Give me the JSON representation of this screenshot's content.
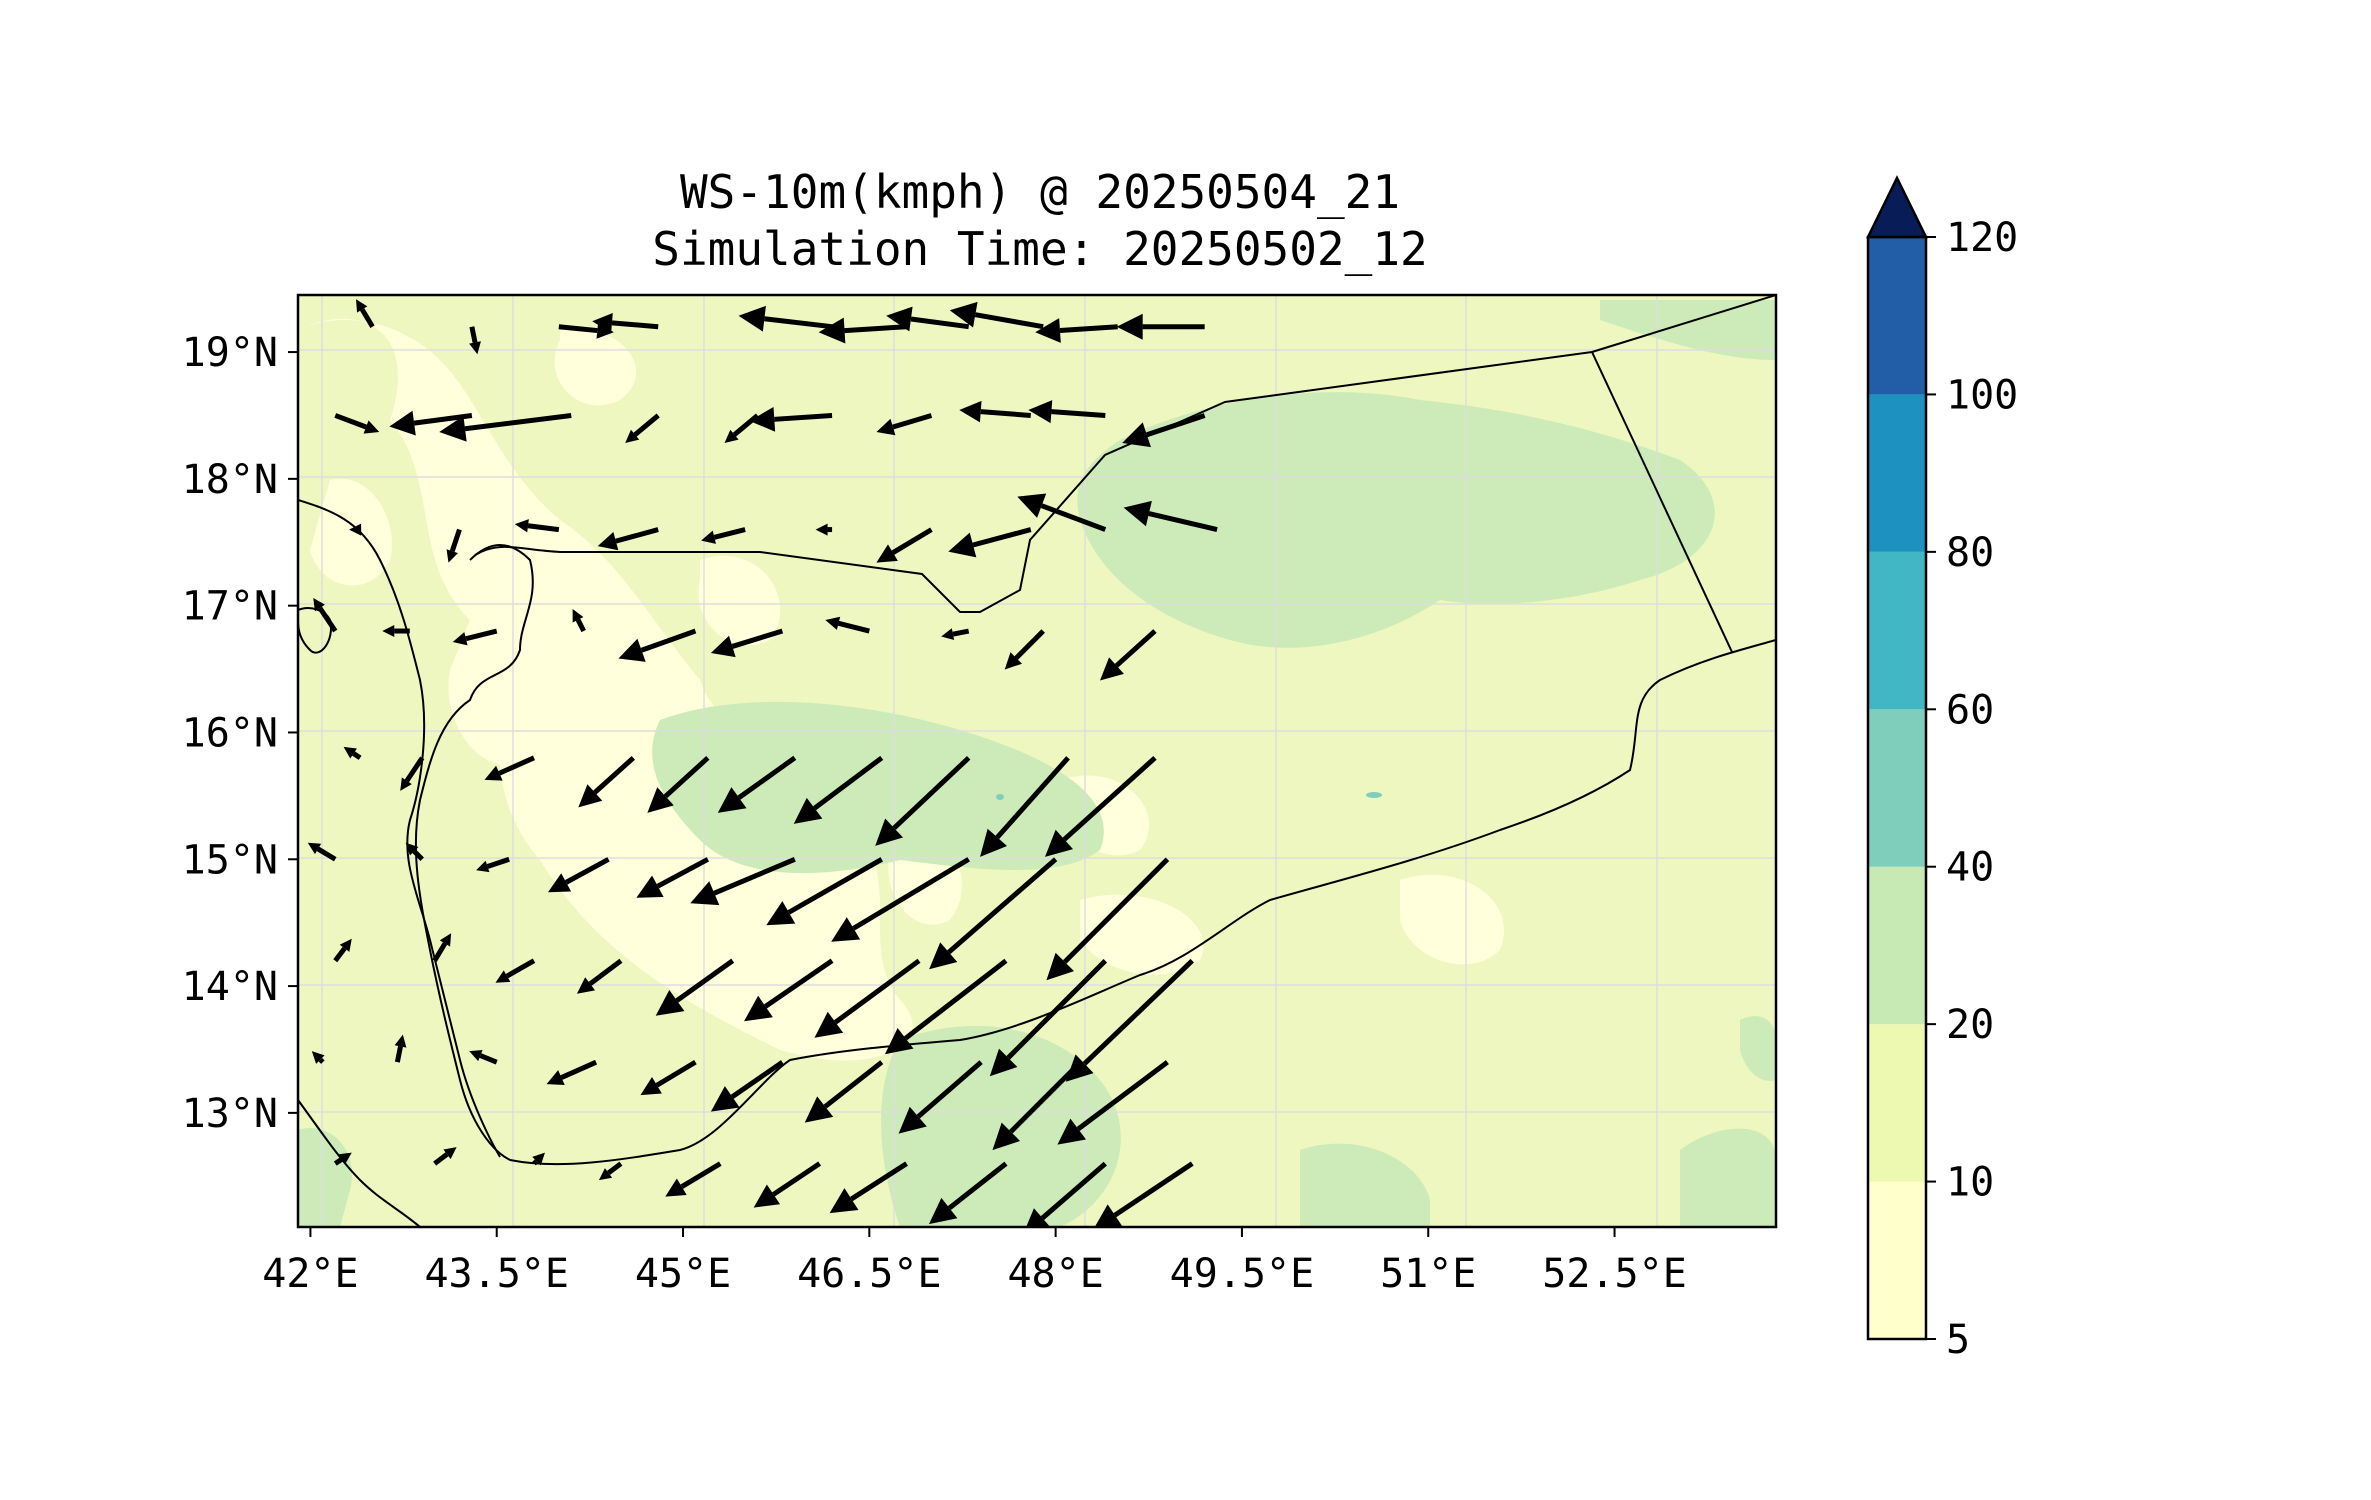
{
  "title": {
    "line1": "WS-10m(kmph) @ 20250504_21",
    "line2": "Simulation Time: 20250502_12"
  },
  "map": {
    "lon_ticks": [
      "42°E",
      "43.5°E",
      "45°E",
      "46.5°E",
      "48°E",
      "49.5°E",
      "51°E",
      "52.5°E"
    ],
    "lat_ticks": [
      "19°N",
      "18°N",
      "17°N",
      "16°N",
      "15°N",
      "14°N",
      "13°N"
    ],
    "lon_range": [
      41.9,
      53.8
    ],
    "lat_range": [
      12.1,
      19.45
    ]
  },
  "colorbar": {
    "levels": [
      "5",
      "10",
      "20",
      "40",
      "60",
      "80",
      "100",
      "120"
    ],
    "colors": [
      "#ffffcc",
      "#edf8b1",
      "#c7e9b4",
      "#7fcdbb",
      "#41b6c4",
      "#1d91c0",
      "#225ea8",
      "#253494"
    ],
    "extend_color": "#081d58"
  },
  "colors": {
    "band_5_10": "#ffffd9",
    "band_10_20": "#eff8c2",
    "band_20_40": "#cdebb8",
    "band_40_60": "#7fcdbb",
    "arrow": "#000000"
  },
  "chart_data": {
    "type": "vector_field",
    "variable": "10 m wind speed (kmph)",
    "arrows": [
      [
        42.5,
        19.2,
        -30,
        50
      ],
      [
        43.3,
        19.2,
        10,
        -50
      ],
      [
        44,
        19.2,
        100,
        -10
      ],
      [
        44.8,
        19.2,
        -120,
        10
      ],
      [
        46.2,
        19.2,
        -170,
        20
      ],
      [
        46.8,
        19.2,
        -160,
        -10
      ],
      [
        47.3,
        19.2,
        -150,
        20
      ],
      [
        47.9,
        19.2,
        -170,
        30
      ],
      [
        48.5,
        19.2,
        -150,
        -10
      ],
      [
        49.2,
        19.2,
        -160,
        0
      ],
      [
        42.2,
        18.5,
        80,
        -30
      ],
      [
        43.3,
        18.5,
        -150,
        -20
      ],
      [
        44.1,
        18.5,
        -240,
        -30
      ],
      [
        44.8,
        18.5,
        -60,
        -50
      ],
      [
        45.6,
        18.5,
        -60,
        -50
      ],
      [
        46.2,
        18.5,
        -150,
        -10
      ],
      [
        47,
        18.5,
        -100,
        -30
      ],
      [
        47.8,
        18.5,
        -130,
        10
      ],
      [
        48.4,
        18.5,
        -140,
        10
      ],
      [
        49.2,
        18.5,
        -150,
        -50
      ],
      [
        42.4,
        17.6,
        -20,
        0
      ],
      [
        43.2,
        17.6,
        -20,
        -60
      ],
      [
        44,
        17.6,
        -80,
        10
      ],
      [
        44.8,
        17.6,
        -110,
        -30
      ],
      [
        45.5,
        17.6,
        -80,
        -20
      ],
      [
        46.2,
        17.6,
        -30,
        0
      ],
      [
        47,
        17.6,
        -100,
        -60
      ],
      [
        47.8,
        17.6,
        -150,
        -40
      ],
      [
        48.4,
        17.6,
        -160,
        60
      ],
      [
        49.3,
        17.6,
        -170,
        40
      ],
      [
        42.2,
        16.8,
        -40,
        60
      ],
      [
        42.8,
        16.8,
        -50,
        0
      ],
      [
        43.5,
        16.8,
        -80,
        -20
      ],
      [
        44.2,
        16.8,
        -20,
        40
      ],
      [
        45.1,
        16.8,
        -140,
        -50
      ],
      [
        45.8,
        16.8,
        -130,
        -40
      ],
      [
        46.5,
        16.8,
        -80,
        20
      ],
      [
        47.3,
        16.8,
        -50,
        -10
      ],
      [
        47.9,
        16.8,
        -70,
        -70
      ],
      [
        48.8,
        16.8,
        -100,
        -90
      ],
      [
        42.4,
        15.8,
        -30,
        20
      ],
      [
        42.9,
        15.8,
        -40,
        -60
      ],
      [
        43.8,
        15.8,
        -90,
        -40
      ],
      [
        44.6,
        15.8,
        -100,
        -90
      ],
      [
        45.2,
        15.8,
        -110,
        -100
      ],
      [
        45.9,
        15.8,
        -140,
        -100
      ],
      [
        46.6,
        15.8,
        -160,
        -120
      ],
      [
        47.3,
        15.8,
        -170,
        -160
      ],
      [
        48.1,
        15.8,
        -160,
        -180
      ],
      [
        48.8,
        15.8,
        -200,
        -180
      ],
      [
        42.2,
        15,
        -50,
        30
      ],
      [
        42.9,
        15,
        -30,
        30
      ],
      [
        43.6,
        15,
        -60,
        -20
      ],
      [
        44.4,
        15,
        -110,
        -60
      ],
      [
        45.2,
        15,
        -130,
        -70
      ],
      [
        45.9,
        15,
        -190,
        -80
      ],
      [
        46.6,
        15,
        -210,
        -120
      ],
      [
        47.3,
        15,
        -250,
        -150
      ],
      [
        48,
        15,
        -230,
        -200
      ],
      [
        48.9,
        15,
        -220,
        -220
      ],
      [
        42.2,
        14.2,
        30,
        40
      ],
      [
        43,
        14.2,
        30,
        50
      ],
      [
        43.8,
        14.2,
        -70,
        -40
      ],
      [
        44.5,
        14.2,
        -80,
        -60
      ],
      [
        45.4,
        14.2,
        -140,
        -100
      ],
      [
        46.2,
        14.2,
        -160,
        -110
      ],
      [
        46.9,
        14.2,
        -190,
        -140
      ],
      [
        47.6,
        14.2,
        -220,
        -170
      ],
      [
        48.4,
        14.2,
        -210,
        -210
      ],
      [
        49.1,
        14.2,
        -230,
        -220
      ],
      [
        42.1,
        13.4,
        -20,
        20
      ],
      [
        42.7,
        13.4,
        10,
        50
      ],
      [
        43.5,
        13.4,
        -50,
        20
      ],
      [
        44.3,
        13.4,
        -90,
        -40
      ],
      [
        45.1,
        13.4,
        -100,
        -60
      ],
      [
        45.8,
        13.4,
        -130,
        -90
      ],
      [
        46.6,
        13.4,
        -140,
        -110
      ],
      [
        47.4,
        13.4,
        -150,
        -130
      ],
      [
        48.2,
        13.4,
        -160,
        -160
      ],
      [
        48.9,
        13.4,
        -200,
        -150
      ],
      [
        42.2,
        12.6,
        30,
        20
      ],
      [
        43,
        12.6,
        40,
        30
      ],
      [
        43.8,
        12.6,
        20,
        20
      ],
      [
        44.5,
        12.6,
        -40,
        -30
      ],
      [
        45.3,
        12.6,
        -100,
        -60
      ],
      [
        46.1,
        12.6,
        -120,
        -80
      ],
      [
        46.8,
        12.6,
        -140,
        -90
      ],
      [
        47.6,
        12.6,
        -140,
        -110
      ],
      [
        48.4,
        12.6,
        -150,
        -130
      ],
      [
        49.1,
        12.6,
        -180,
        -120
      ]
    ]
  }
}
